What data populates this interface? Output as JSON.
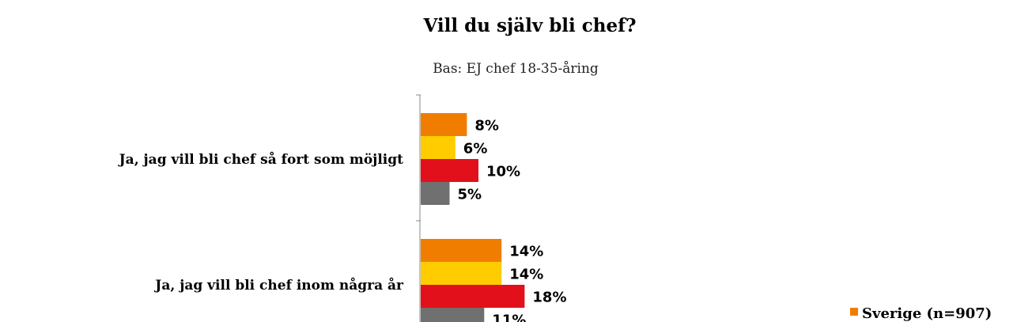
{
  "chart_data": {
    "type": "bar",
    "orientation": "horizontal",
    "title": "Vill du själv bli chef?",
    "subtitle": "Bas:  EJ chef 18-35-åring",
    "categories": [
      "Ja, jag vill bli chef så fort som möjligt",
      "Ja, jag vill bli chef inom några år"
    ],
    "series": [
      {
        "name": "Sverige (n=907)",
        "color": "#F07D00",
        "values": [
          8,
          14
        ]
      },
      {
        "name": "",
        "color": "#FFCC00",
        "values": [
          6,
          14
        ]
      },
      {
        "name": "",
        "color": "#E2101A",
        "values": [
          10,
          18
        ]
      },
      {
        "name": "",
        "color": "#707070",
        "values": [
          5,
          11
        ]
      }
    ],
    "value_suffix": "%",
    "grid": false,
    "legend_position": "bottom-right"
  }
}
